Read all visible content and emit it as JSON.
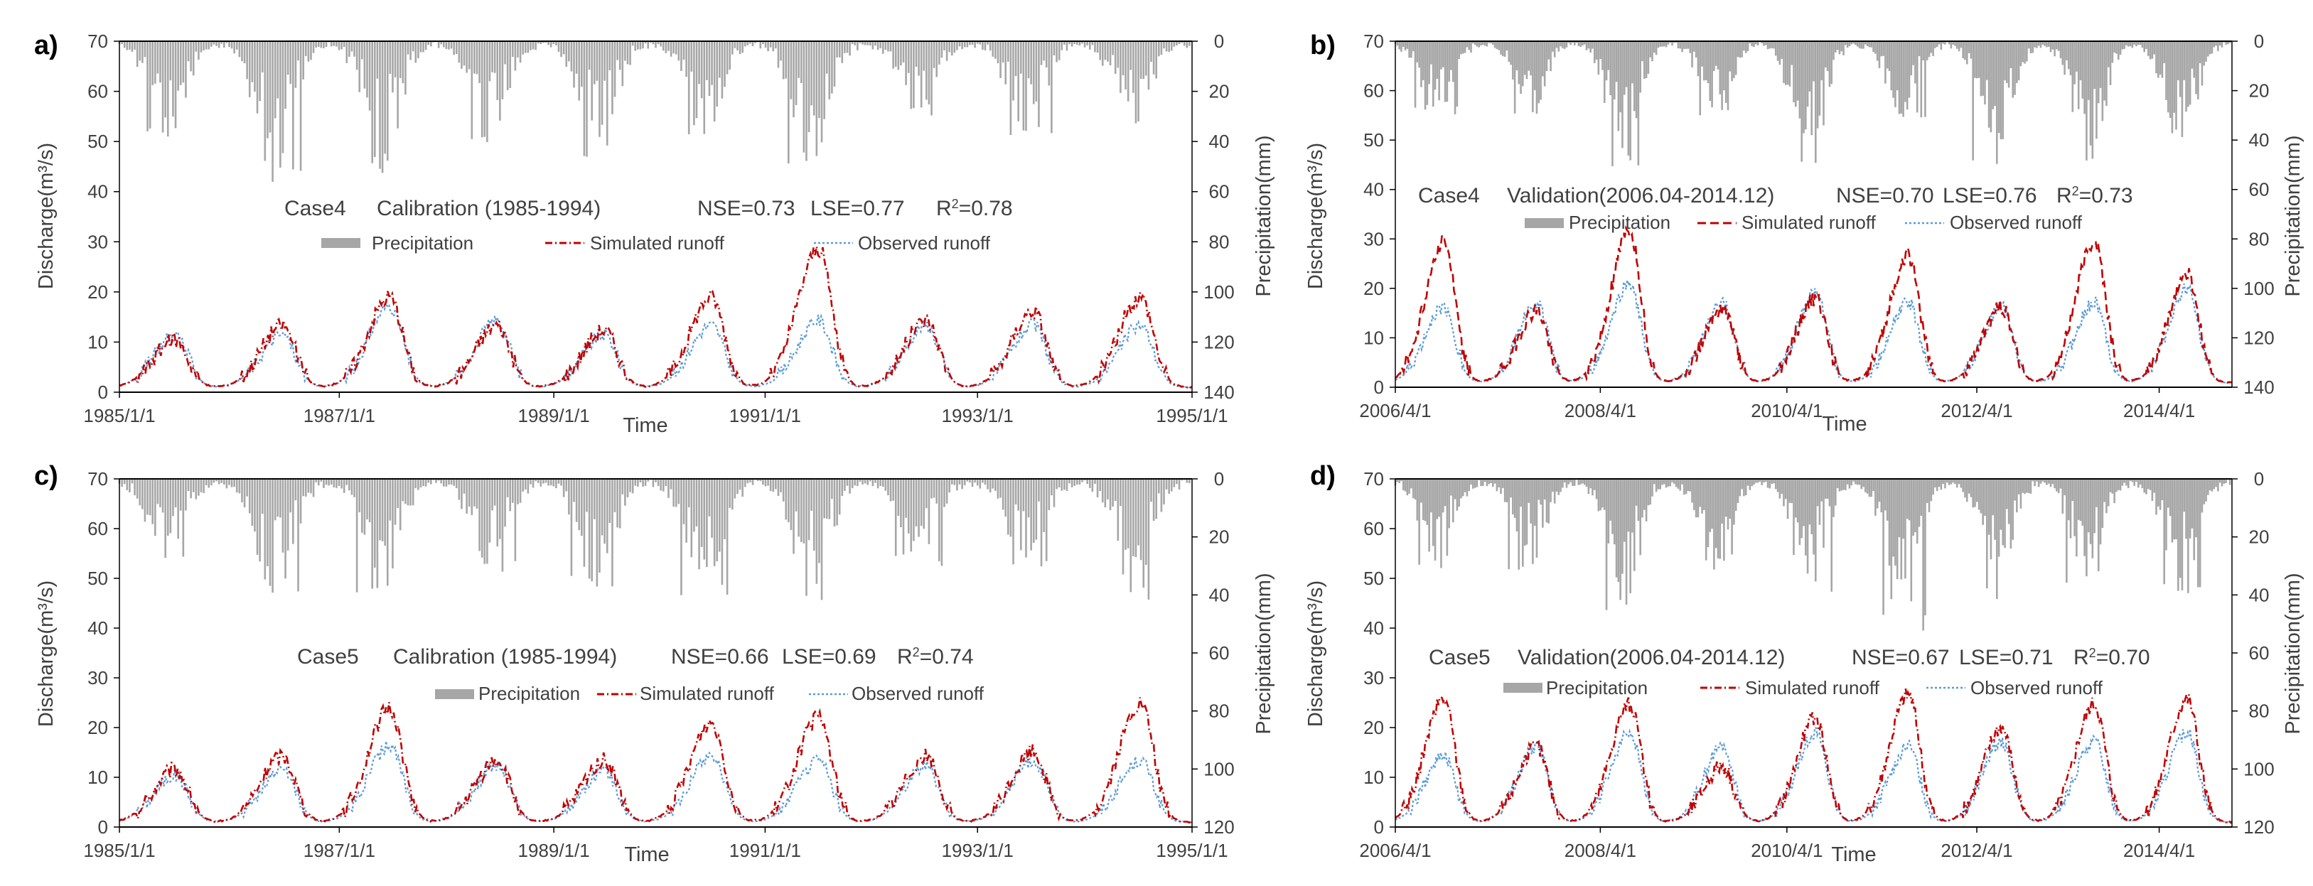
{
  "figure": {
    "precip_color": "#a6a6a6",
    "sim_color": "#c00000",
    "obs_color": "#5b9bd5",
    "axis_color": "#000000"
  },
  "chart_data": [
    {
      "panel": "a)",
      "type": "line",
      "case": "Case4",
      "period": "Calibration (1985-1994)",
      "nse": "NSE=0.73",
      "lse": "LSE=0.77",
      "r2_prefix": "R",
      "r2_sup": "2",
      "r2_value": "=0.78",
      "xlabel": "Time",
      "ylabel": "Discharge(m³/s)",
      "y2label": "Precipitation(mm)",
      "ylim": [
        0,
        70
      ],
      "y_ticks": [
        0,
        10,
        20,
        30,
        40,
        50,
        60,
        70
      ],
      "y2lim": [
        0,
        140
      ],
      "y2_ticks": [
        0,
        20,
        40,
        60,
        80,
        100,
        120,
        140
      ],
      "x_ticks": [
        "1985/1/1",
        "1987/1/1",
        "1989/1/1",
        "1991/1/1",
        "1993/1/1",
        "1995/1/1"
      ],
      "legend": [
        "Precipitation",
        "Simulated runoff",
        "Observed runoff"
      ],
      "seasons": 10,
      "sim_peaks": [
        10,
        13,
        19,
        13,
        12,
        19,
        29,
        14,
        16,
        19
      ],
      "obs_peaks": [
        11,
        11,
        17,
        14,
        11,
        13,
        14,
        13,
        13,
        13
      ],
      "precip_max": [
        38,
        58,
        52,
        38,
        46,
        36,
        48,
        30,
        38,
        34
      ]
    },
    {
      "panel": "b)",
      "type": "line",
      "case": "Case4",
      "period": "Validation(2006.04-2014.12)",
      "nse": "NSE=0.70",
      "lse": "LSE=0.76",
      "r2_prefix": "R",
      "r2_sup": "2",
      "r2_value": "=0.73",
      "xlabel": "Time",
      "ylabel": "Discharge(m³/s)",
      "y2label": "Precipitation(mm)",
      "ylim": [
        0,
        70
      ],
      "y_ticks": [
        0,
        10,
        20,
        30,
        40,
        50,
        60,
        70
      ],
      "y2lim": [
        0,
        140
      ],
      "y2_ticks": [
        0,
        20,
        40,
        60,
        80,
        100,
        120,
        140
      ],
      "x_ticks": [
        "2006/4/1",
        "2008/4/1",
        "2010/4/1",
        "2012/4/1",
        "2014/4/1"
      ],
      "legend": [
        "Precipitation",
        "Simulated runoff",
        "Observed runoff"
      ],
      "seasons": 9,
      "sim_peaks": [
        30,
        15,
        32,
        16,
        18,
        27,
        16,
        30,
        23
      ],
      "obs_peaks": [
        16,
        17,
        21,
        17,
        19,
        17,
        16,
        17,
        20
      ],
      "precip_max": [
        30,
        30,
        50,
        30,
        55,
        30,
        50,
        50,
        40
      ]
    },
    {
      "panel": "c)",
      "type": "line",
      "case": "Case5",
      "period": "Calibration (1985-1994)",
      "nse": "NSE=0.66",
      "lse": "LSE=0.69",
      "r2_prefix": "R",
      "r2_sup": "2",
      "r2_value": "=0.74",
      "xlabel": "Time",
      "ylabel": "Discharge(m³/s)",
      "y2label": "Precipitation(mm)",
      "ylim": [
        0,
        70
      ],
      "y_ticks": [
        0,
        10,
        20,
        30,
        40,
        50,
        60,
        70
      ],
      "y2lim": [
        0,
        120
      ],
      "y2_ticks": [
        0,
        20,
        40,
        60,
        80,
        100,
        120
      ],
      "x_ticks": [
        "1985/1/1",
        "1987/1/1",
        "1989/1/1",
        "1991/1/1",
        "1993/1/1",
        "1995/1/1"
      ],
      "legend": [
        "Precipitation",
        "Simulated runoff",
        "Observed runoff"
      ],
      "seasons": 10,
      "sim_peaks": [
        11,
        14,
        24,
        13,
        13,
        21,
        22,
        14,
        15,
        25
      ],
      "obs_peaks": [
        10,
        11,
        16,
        12,
        11,
        14,
        13,
        12,
        13,
        13
      ],
      "precip_max": [
        30,
        42,
        40,
        30,
        36,
        40,
        42,
        28,
        30,
        42
      ]
    },
    {
      "panel": "d)",
      "type": "line",
      "case": "Case5",
      "period": "Validation(2006.04-2014.12)",
      "nse": "NSE=0.67",
      "lse": "LSE=0.71",
      "r2_prefix": "R",
      "r2_sup": "2",
      "r2_value": "=0.70",
      "xlabel": "Time",
      "ylabel": "Discharge(m³/s)",
      "y2label": "Precipitation(mm)",
      "ylim": [
        0,
        70
      ],
      "y_ticks": [
        0,
        10,
        20,
        30,
        40,
        50,
        60,
        70
      ],
      "y2lim": [
        0,
        120
      ],
      "y2_ticks": [
        0,
        20,
        40,
        60,
        80,
        100,
        120
      ],
      "x_ticks": [
        "2006/4/1",
        "2008/4/1",
        "2010/4/1",
        "2012/4/1",
        "2014/4/1"
      ],
      "legend": [
        "Precipitation",
        "Simulated runoff",
        "Observed runoff"
      ],
      "seasons": 9,
      "sim_peaks": [
        26,
        16,
        25,
        12,
        22,
        27,
        20,
        25,
        26
      ],
      "obs_peaks": [
        14,
        16,
        19,
        16,
        19,
        16,
        17,
        17,
        19
      ],
      "precip_max": [
        30,
        30,
        48,
        30,
        40,
        50,
        42,
        38,
        40
      ]
    }
  ]
}
